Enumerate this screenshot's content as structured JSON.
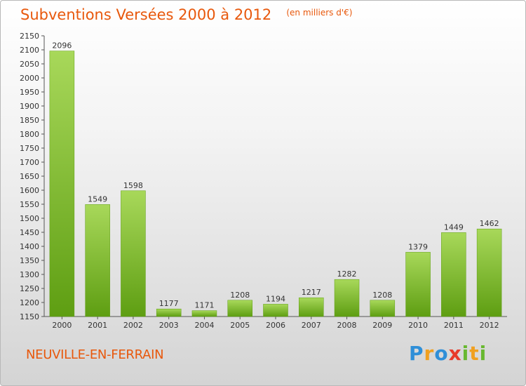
{
  "title": "Subventions Versées 2000 à 2012",
  "subtitle": "(en milliers d'€)",
  "city": "NEUVILLE-EN-FERRAIN",
  "logo": {
    "text": "Proxiti",
    "colors": [
      "#2f8fd8",
      "#f0a020",
      "#2f8fd8",
      "#e83a2a",
      "#68b830",
      "#f0a020",
      "#68b830"
    ]
  },
  "chart_data": {
    "type": "bar",
    "title": "Subventions Versées 2000 à 2012",
    "subtitle": "(en milliers d'€)",
    "xlabel": "",
    "ylabel": "",
    "categories": [
      "2000",
      "2001",
      "2002",
      "2003",
      "2004",
      "2005",
      "2006",
      "2007",
      "2008",
      "2009",
      "2010",
      "2011",
      "2012"
    ],
    "values": [
      2096,
      1549,
      1598,
      1177,
      1171,
      1208,
      1194,
      1217,
      1282,
      1208,
      1379,
      1449,
      1462
    ],
    "ylim": [
      1150,
      2150
    ],
    "yticks": [
      1150,
      1200,
      1250,
      1300,
      1350,
      1400,
      1450,
      1500,
      1550,
      1600,
      1650,
      1700,
      1750,
      1800,
      1850,
      1900,
      1950,
      2000,
      2050,
      2100,
      2150
    ],
    "grid": false,
    "legend": "none",
    "bar_color_top": "#a8d85a",
    "bar_color_bottom": "#5e9e12"
  }
}
